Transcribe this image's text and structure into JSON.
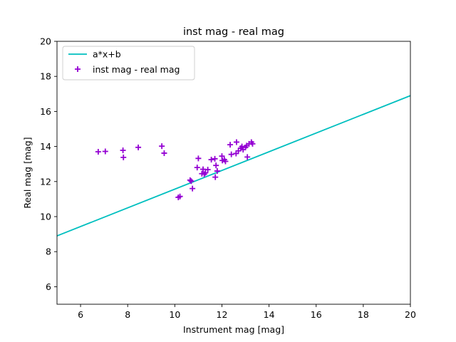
{
  "chart_data": {
    "type": "scatter",
    "title": "inst mag - real mag",
    "xlabel": "Instrument mag [mag]",
    "ylabel": "Real mag [mag]",
    "xlim": [
      5,
      20
    ],
    "ylim": [
      5,
      20
    ],
    "xticks": [
      6,
      8,
      10,
      12,
      14,
      16,
      18,
      20
    ],
    "yticks": [
      6,
      8,
      10,
      12,
      14,
      16,
      18,
      20
    ],
    "grid": false,
    "legend_position": "upper-left",
    "series": [
      {
        "name": "a*x+b",
        "kind": "line",
        "color": "#00bfbf",
        "points": [
          [
            5,
            8.9
          ],
          [
            20,
            16.9
          ]
        ]
      },
      {
        "name": "inst mag - real mag",
        "kind": "scatter",
        "marker": "+",
        "color": "#9400d3",
        "points": [
          [
            6.75,
            13.7
          ],
          [
            7.05,
            13.72
          ],
          [
            7.8,
            13.78
          ],
          [
            7.82,
            13.38
          ],
          [
            8.45,
            13.95
          ],
          [
            9.45,
            14.02
          ],
          [
            9.55,
            13.62
          ],
          [
            10.15,
            11.1
          ],
          [
            10.22,
            11.15
          ],
          [
            10.65,
            12.08
          ],
          [
            10.7,
            12.02
          ],
          [
            10.75,
            11.6
          ],
          [
            10.95,
            12.8
          ],
          [
            11.0,
            13.32
          ],
          [
            11.15,
            12.45
          ],
          [
            11.2,
            12.7
          ],
          [
            11.25,
            12.42
          ],
          [
            11.3,
            12.5
          ],
          [
            11.4,
            12.68
          ],
          [
            11.55,
            13.25
          ],
          [
            11.7,
            13.3
          ],
          [
            11.72,
            12.25
          ],
          [
            11.75,
            12.92
          ],
          [
            11.8,
            12.6
          ],
          [
            12.0,
            13.45
          ],
          [
            12.02,
            13.2
          ],
          [
            12.1,
            13.25
          ],
          [
            12.15,
            13.15
          ],
          [
            12.35,
            14.1
          ],
          [
            12.4,
            13.55
          ],
          [
            12.6,
            13.6
          ],
          [
            12.62,
            14.25
          ],
          [
            12.7,
            13.75
          ],
          [
            12.8,
            13.9
          ],
          [
            12.85,
            14.0
          ],
          [
            12.9,
            13.82
          ],
          [
            13.0,
            13.95
          ],
          [
            13.05,
            14.05
          ],
          [
            13.08,
            13.4
          ],
          [
            13.15,
            14.15
          ],
          [
            13.25,
            14.25
          ],
          [
            13.3,
            14.15
          ]
        ]
      }
    ]
  }
}
